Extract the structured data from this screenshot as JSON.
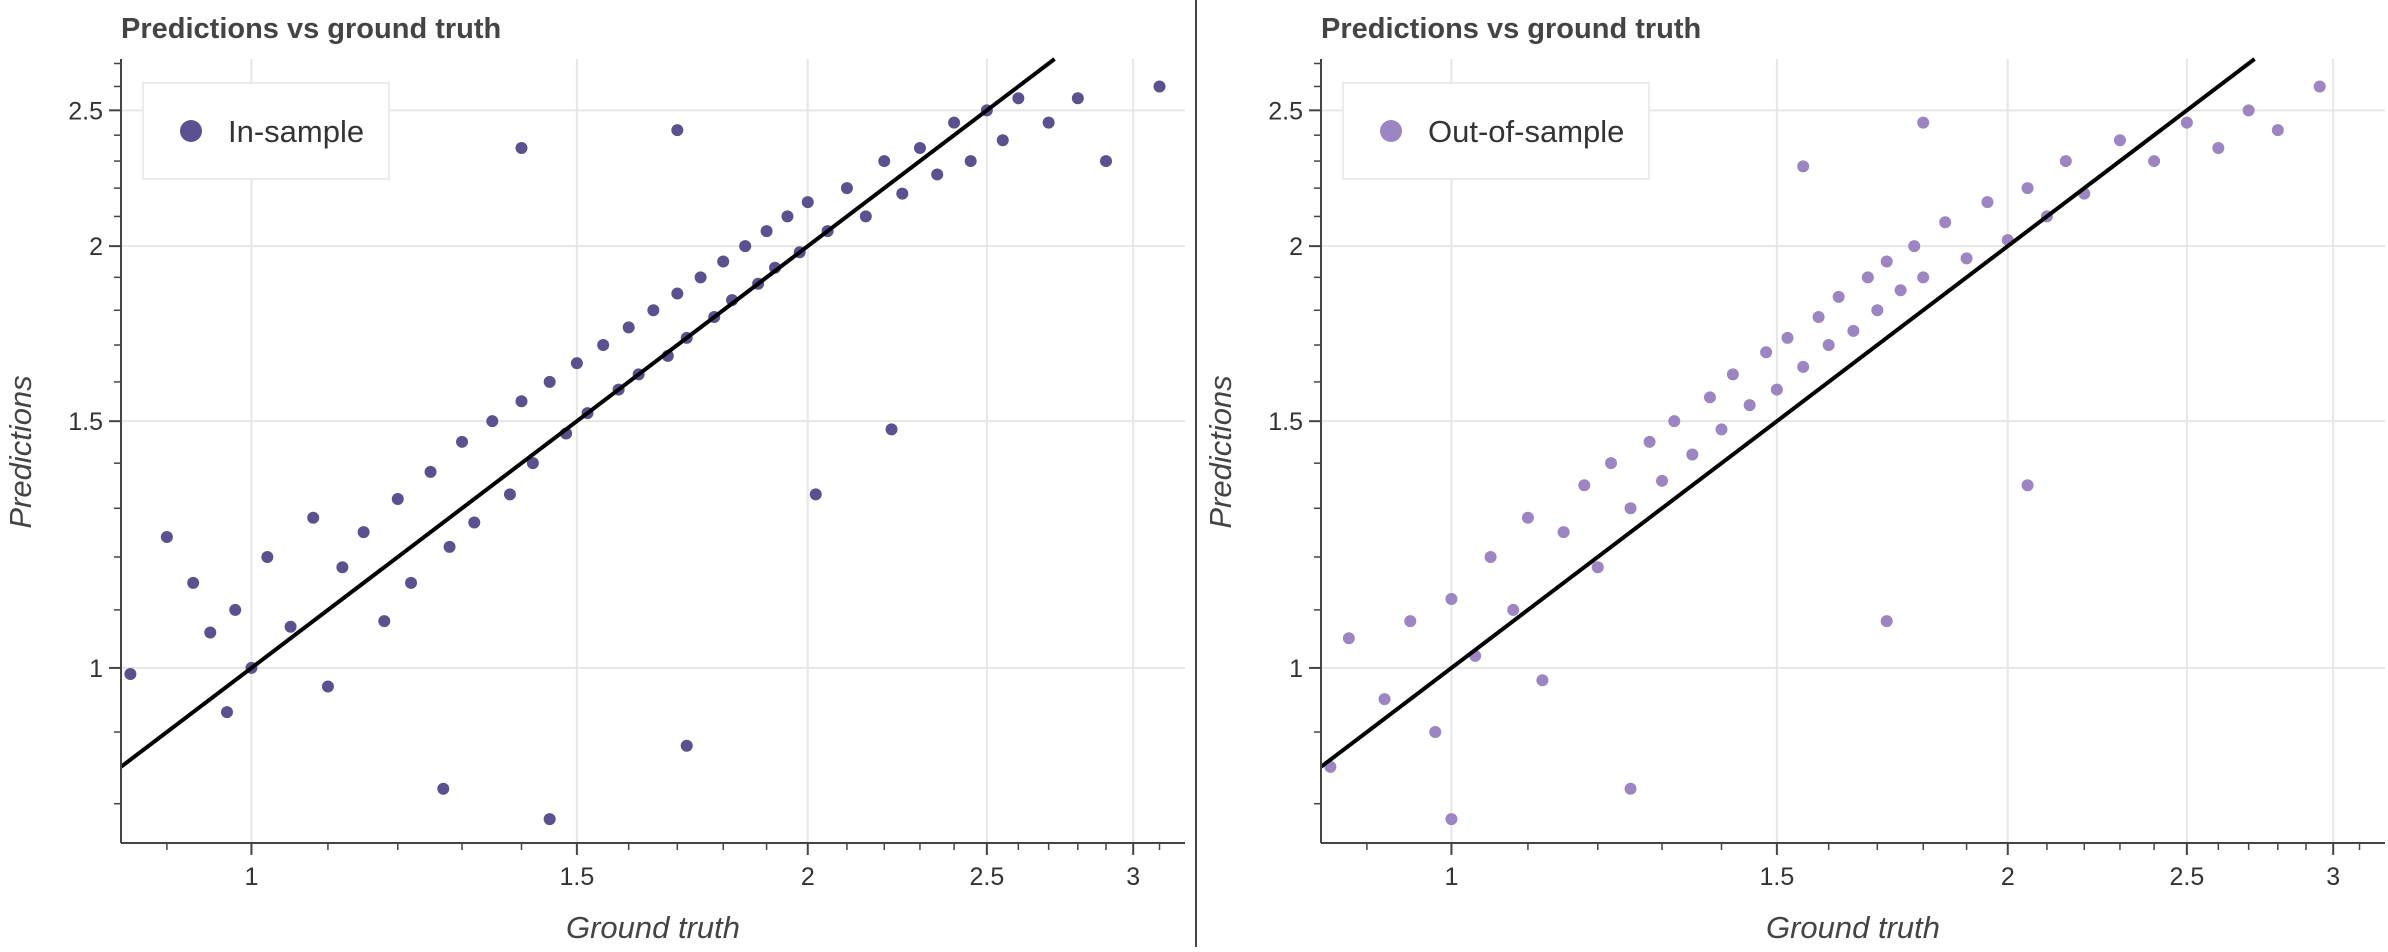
{
  "chart_data": [
    {
      "type": "scatter",
      "title": "Predictions vs ground truth",
      "xlabel": "Ground truth",
      "ylabel": "Predictions",
      "x_scale": "log",
      "y_scale": "log",
      "xlim": [
        0.85,
        3.2
      ],
      "ylim": [
        0.75,
        2.72
      ],
      "x_ticks": [
        1,
        1.5,
        2,
        2.5,
        3
      ],
      "y_ticks": [
        1,
        1.5,
        2,
        2.5
      ],
      "grid": true,
      "legend_position": "top-left",
      "series": [
        {
          "name": "In-sample",
          "color": "#5b5190",
          "points": [
            [
              0.86,
              0.99
            ],
            [
              0.9,
              1.24
            ],
            [
              0.93,
              1.15
            ],
            [
              0.95,
              1.06
            ],
            [
              0.97,
              0.93
            ],
            [
              0.98,
              1.1
            ],
            [
              1.0,
              1.0
            ],
            [
              1.02,
              1.2
            ],
            [
              1.05,
              1.07
            ],
            [
              1.08,
              1.28
            ],
            [
              1.1,
              0.97
            ],
            [
              1.12,
              1.18
            ],
            [
              1.15,
              1.25
            ],
            [
              1.18,
              1.08
            ],
            [
              1.2,
              1.32
            ],
            [
              1.22,
              1.15
            ],
            [
              1.25,
              1.38
            ],
            [
              1.28,
              1.22
            ],
            [
              1.3,
              1.45
            ],
            [
              1.32,
              1.27
            ],
            [
              1.35,
              1.5
            ],
            [
              1.38,
              1.33
            ],
            [
              1.4,
              1.55
            ],
            [
              1.42,
              1.4
            ],
            [
              1.45,
              1.6
            ],
            [
              1.48,
              1.47
            ],
            [
              1.5,
              1.65
            ],
            [
              1.52,
              1.52
            ],
            [
              1.55,
              1.7
            ],
            [
              1.58,
              1.58
            ],
            [
              1.6,
              1.75
            ],
            [
              1.62,
              1.62
            ],
            [
              1.65,
              1.8
            ],
            [
              1.68,
              1.67
            ],
            [
              1.7,
              1.85
            ],
            [
              1.72,
              1.72
            ],
            [
              1.75,
              1.9
            ],
            [
              1.78,
              1.78
            ],
            [
              1.8,
              1.95
            ],
            [
              1.82,
              1.83
            ],
            [
              1.85,
              2.0
            ],
            [
              1.88,
              1.88
            ],
            [
              1.9,
              2.05
            ],
            [
              1.92,
              1.93
            ],
            [
              1.95,
              2.1
            ],
            [
              1.98,
              1.98
            ],
            [
              2.0,
              2.15
            ],
            [
              2.05,
              2.05
            ],
            [
              2.1,
              2.2
            ],
            [
              2.15,
              2.1
            ],
            [
              2.2,
              2.3
            ],
            [
              2.25,
              2.18
            ],
            [
              2.3,
              2.35
            ],
            [
              2.35,
              2.25
            ],
            [
              2.4,
              2.45
            ],
            [
              2.45,
              2.3
            ],
            [
              2.5,
              2.5
            ],
            [
              2.55,
              2.38
            ],
            [
              2.6,
              2.55
            ],
            [
              2.7,
              2.45
            ],
            [
              2.8,
              2.55
            ],
            [
              2.9,
              2.3
            ],
            [
              3.1,
              2.6
            ],
            [
              1.27,
              0.82
            ],
            [
              1.45,
              0.78
            ],
            [
              1.72,
              0.88
            ],
            [
              2.02,
              1.33
            ],
            [
              2.22,
              1.48
            ],
            [
              1.4,
              2.35
            ],
            [
              1.7,
              2.42
            ]
          ]
        }
      ]
    },
    {
      "type": "scatter",
      "title": "Predictions vs ground truth",
      "xlabel": "Ground truth",
      "ylabel": "Predictions",
      "x_scale": "log",
      "y_scale": "log",
      "xlim": [
        0.85,
        3.2
      ],
      "ylim": [
        0.75,
        2.72
      ],
      "x_ticks": [
        1,
        1.5,
        2,
        2.5,
        3
      ],
      "y_ticks": [
        1,
        1.5,
        2,
        2.5
      ],
      "grid": true,
      "legend_position": "top-left",
      "series": [
        {
          "name": "Out-of-sample",
          "color": "#9b85c2",
          "points": [
            [
              0.86,
              0.85
            ],
            [
              0.88,
              1.05
            ],
            [
              0.92,
              0.95
            ],
            [
              0.95,
              1.08
            ],
            [
              0.98,
              0.9
            ],
            [
              1.0,
              1.12
            ],
            [
              1.03,
              1.02
            ],
            [
              1.05,
              1.2
            ],
            [
              1.08,
              1.1
            ],
            [
              1.1,
              1.28
            ],
            [
              1.12,
              0.98
            ],
            [
              1.15,
              1.25
            ],
            [
              1.18,
              1.35
            ],
            [
              1.2,
              1.18
            ],
            [
              1.22,
              1.4
            ],
            [
              1.25,
              1.3
            ],
            [
              1.28,
              1.45
            ],
            [
              1.3,
              1.36
            ],
            [
              1.32,
              1.5
            ],
            [
              1.35,
              1.42
            ],
            [
              1.38,
              1.56
            ],
            [
              1.4,
              1.48
            ],
            [
              1.42,
              1.62
            ],
            [
              1.45,
              1.54
            ],
            [
              1.48,
              1.68
            ],
            [
              1.5,
              1.58
            ],
            [
              1.52,
              1.72
            ],
            [
              1.55,
              1.64
            ],
            [
              1.58,
              1.78
            ],
            [
              1.6,
              1.7
            ],
            [
              1.62,
              1.84
            ],
            [
              1.65,
              1.74
            ],
            [
              1.68,
              1.9
            ],
            [
              1.7,
              1.8
            ],
            [
              1.72,
              1.95
            ],
            [
              1.75,
              1.86
            ],
            [
              1.78,
              2.0
            ],
            [
              1.8,
              1.9
            ],
            [
              1.85,
              2.08
            ],
            [
              1.9,
              1.96
            ],
            [
              1.95,
              2.15
            ],
            [
              2.0,
              2.02
            ],
            [
              2.05,
              2.2
            ],
            [
              2.1,
              2.1
            ],
            [
              2.15,
              2.3
            ],
            [
              2.2,
              2.18
            ],
            [
              2.3,
              2.38
            ],
            [
              2.4,
              2.3
            ],
            [
              2.5,
              2.45
            ],
            [
              2.6,
              2.35
            ],
            [
              2.7,
              2.5
            ],
            [
              2.8,
              2.42
            ],
            [
              2.95,
              2.6
            ],
            [
              1.0,
              0.78
            ],
            [
              1.25,
              0.82
            ],
            [
              1.72,
              1.08
            ],
            [
              2.05,
              1.35
            ],
            [
              1.55,
              2.28
            ],
            [
              1.8,
              2.45
            ]
          ]
        }
      ]
    }
  ]
}
